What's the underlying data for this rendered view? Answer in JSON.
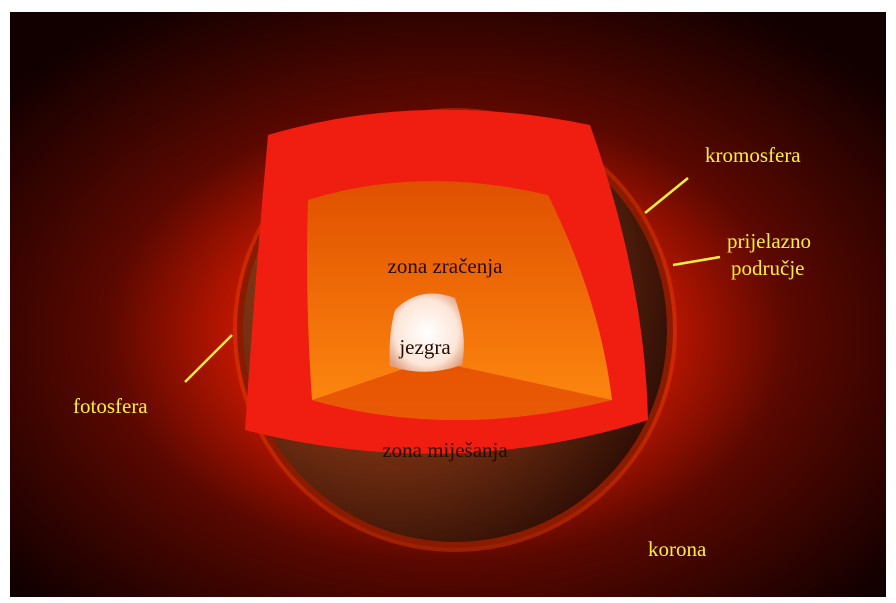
{
  "labels": {
    "chromosphere": "kromosfera",
    "transition": [
      "prijelazno",
      "područje"
    ],
    "photosphere": "fotosfera",
    "radiative": "zona zračenja",
    "core": "jezgra",
    "convective": "zona miješanja",
    "corona": "korona"
  }
}
